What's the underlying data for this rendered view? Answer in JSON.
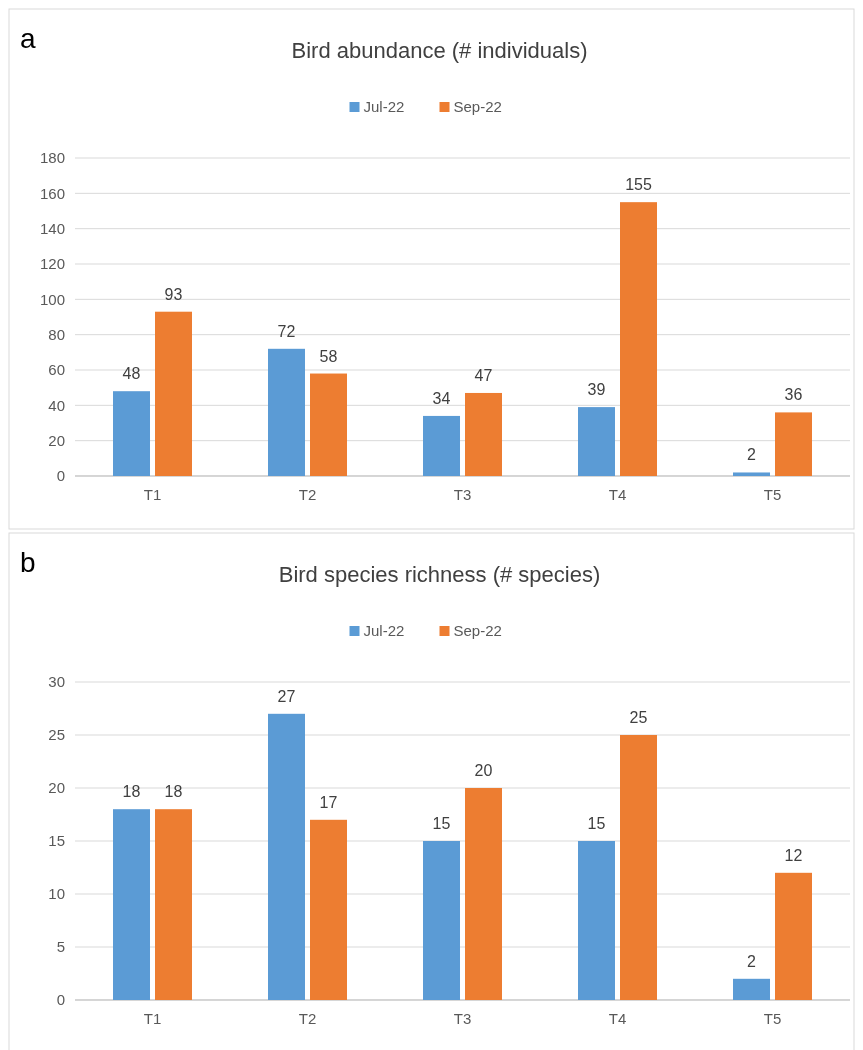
{
  "chart_data": [
    {
      "type": "bar",
      "title": "Bird abundance (# individuals)",
      "annotations": [
        "a"
      ],
      "categories": [
        "T1",
        "T2",
        "T3",
        "T4",
        "T5"
      ],
      "series": [
        {
          "name": "Jul-22",
          "color": "#5b9bd5",
          "values": [
            48,
            72,
            34,
            39,
            2
          ]
        },
        {
          "name": "Sep-22",
          "color": "#ed7d31",
          "values": [
            93,
            58,
            47,
            155,
            36
          ]
        }
      ],
      "ylim": [
        0,
        180
      ],
      "yticks": [
        0,
        20,
        40,
        60,
        80,
        100,
        120,
        140,
        160,
        180
      ],
      "grid": "y",
      "legend": "top",
      "data_labels": true
    },
    {
      "type": "bar",
      "title": "Bird species richness (# species)",
      "annotations": [
        "b"
      ],
      "categories": [
        "T1",
        "T2",
        "T3",
        "T4",
        "T5"
      ],
      "series": [
        {
          "name": "Jul-22",
          "color": "#5b9bd5",
          "values": [
            18,
            27,
            15,
            15,
            2
          ]
        },
        {
          "name": "Sep-22",
          "color": "#ed7d31",
          "values": [
            18,
            17,
            20,
            25,
            12
          ]
        }
      ],
      "ylim": [
        0,
        30
      ],
      "yticks": [
        0,
        5,
        10,
        15,
        20,
        25,
        30
      ],
      "grid": "y",
      "legend": "top",
      "data_labels": true
    }
  ]
}
